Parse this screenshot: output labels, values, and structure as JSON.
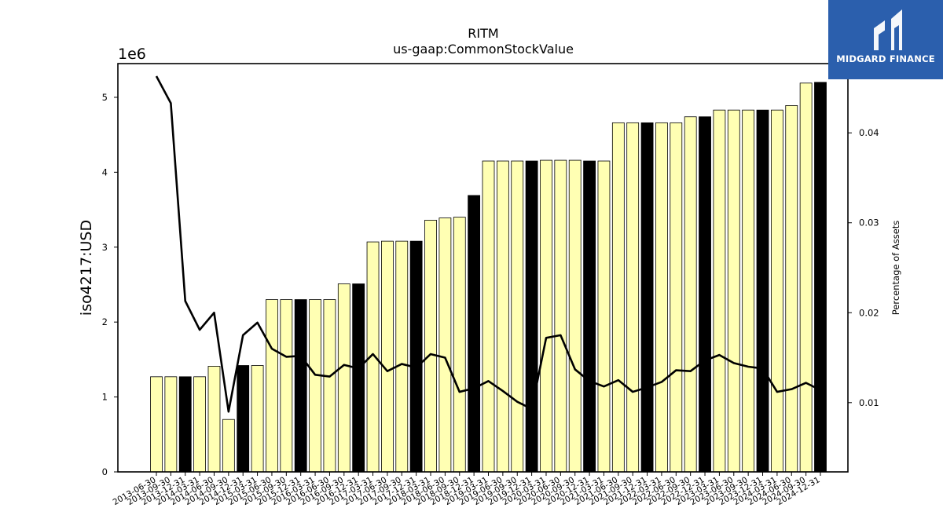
{
  "logo": {
    "text": "MIDGARD FINANCE",
    "icon": "midgard-logo-icon",
    "background": "#2b5fad"
  },
  "colors": {
    "bar_regular": "#ffffb3",
    "bar_highlight": "#000000",
    "line": "#000000"
  },
  "chart_data": {
    "type": "bar",
    "title": "RITM",
    "subtitle": "us-gaap:CommonStockValue",
    "ylabel": "iso4217:USD",
    "y_offset_text": "1e6",
    "y2label": "Percentage of Assets",
    "ylim": [
      0,
      5450000
    ],
    "y2lim": [
      0.0023,
      0.0477
    ],
    "yticks": [
      0,
      1,
      2,
      3,
      4,
      5
    ],
    "y2ticks": [
      "0.01",
      "0.02",
      "0.03",
      "0.04"
    ],
    "grid": false,
    "categories": [
      "2013-06-30",
      "2013-09-30",
      "2013-12-31",
      "2014-03-31",
      "2014-06-30",
      "2014-09-30",
      "2014-12-31",
      "2015-03-31",
      "2015-06-30",
      "2015-09-30",
      "2015-12-31",
      "2016-03-31",
      "2016-06-30",
      "2016-09-30",
      "2016-12-31",
      "2017-03-31",
      "2017-06-30",
      "2017-09-30",
      "2017-12-31",
      "2018-03-31",
      "2018-06-30",
      "2018-09-30",
      "2018-12-31",
      "2019-03-31",
      "2019-06-30",
      "2019-09-30",
      "2019-12-31",
      "2020-03-31",
      "2020-06-30",
      "2020-09-30",
      "2020-12-31",
      "2021-03-31",
      "2021-06-30",
      "2021-09-30",
      "2021-12-31",
      "2022-03-31",
      "2022-06-30",
      "2022-09-30",
      "2022-12-31",
      "2023-03-31",
      "2023-06-30",
      "2023-09-30",
      "2023-12-31",
      "2024-03-31",
      "2024-06-30",
      "2024-09-30",
      "2024-12-31"
    ],
    "series": [
      {
        "type": "bar",
        "values": [
          1270000,
          1270000,
          1270000,
          1270000,
          1410000,
          700000,
          1420000,
          1420000,
          2300000,
          2300000,
          2300000,
          2300000,
          2300000,
          2510000,
          2510000,
          3070000,
          3080000,
          3080000,
          3080000,
          3360000,
          3390000,
          3400000,
          3690000,
          4150000,
          4150000,
          4150000,
          4150000,
          4160000,
          4160000,
          4160000,
          4150000,
          4150000,
          4660000,
          4660000,
          4660000,
          4660000,
          4660000,
          4740000,
          4740000,
          4830000,
          4830000,
          4830000,
          4830000,
          4830000,
          4890000,
          5190000,
          5200000
        ],
        "highlight": [
          false,
          false,
          true,
          false,
          false,
          false,
          true,
          false,
          false,
          false,
          true,
          false,
          false,
          false,
          true,
          false,
          false,
          false,
          true,
          false,
          false,
          false,
          true,
          false,
          false,
          false,
          true,
          false,
          false,
          false,
          true,
          false,
          false,
          false,
          true,
          false,
          false,
          false,
          true,
          false,
          false,
          false,
          true,
          false,
          false,
          false,
          true
        ]
      },
      {
        "type": "line",
        "axis": "right",
        "values": [
          0.0463,
          0.0433,
          0.0213,
          0.0181,
          0.02,
          0.009,
          0.0175,
          0.0189,
          0.016,
          0.0151,
          0.0152,
          0.0131,
          0.0129,
          0.0142,
          0.0138,
          0.0154,
          0.0135,
          0.0143,
          0.0139,
          0.0154,
          0.015,
          0.0112,
          0.0116,
          0.0124,
          0.0113,
          0.0101,
          0.0093,
          0.0172,
          0.0175,
          0.0137,
          0.0124,
          0.0118,
          0.0125,
          0.0112,
          0.0117,
          0.0123,
          0.0136,
          0.0135,
          0.0147,
          0.0153,
          0.0144,
          0.014,
          0.0138,
          0.0112,
          0.0115,
          0.0122,
          0.0114
        ]
      }
    ]
  }
}
